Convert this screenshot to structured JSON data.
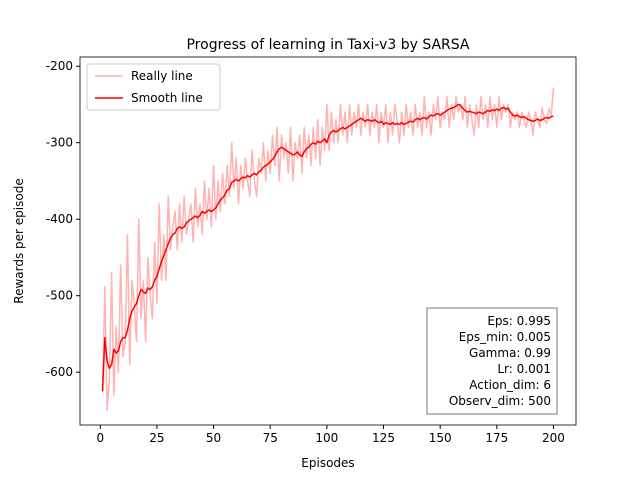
{
  "chart_data": {
    "type": "line",
    "title": "Progress of learning in Taxi-v3 by SARSA",
    "xlabel": "Episodes",
    "ylabel": "Rewards per episode",
    "xlim": [
      -8.95,
      209.95
    ],
    "ylim": [
      -669,
      -188
    ],
    "xticks": [
      0,
      25,
      50,
      75,
      100,
      125,
      150,
      175,
      200
    ],
    "yticks": [
      -600,
      -500,
      -400,
      -300,
      -200
    ],
    "legend": "upper left",
    "annotation": [
      "Eps: 0.995",
      "Eps_min: 0.005",
      "Gamma: 0.99",
      "Lr: 0.001",
      "Action_dim: 6",
      "Observ_dim: 500"
    ],
    "x": [
      1,
      2,
      3,
      4,
      5,
      6,
      7,
      8,
      9,
      10,
      11,
      12,
      13,
      14,
      15,
      16,
      17,
      18,
      19,
      20,
      21,
      22,
      23,
      24,
      25,
      26,
      27,
      28,
      29,
      30,
      31,
      32,
      33,
      34,
      35,
      36,
      37,
      38,
      39,
      40,
      41,
      42,
      43,
      44,
      45,
      46,
      47,
      48,
      49,
      50,
      51,
      52,
      53,
      54,
      55,
      56,
      57,
      58,
      59,
      60,
      61,
      62,
      63,
      64,
      65,
      66,
      67,
      68,
      69,
      70,
      71,
      72,
      73,
      74,
      75,
      76,
      77,
      78,
      79,
      80,
      81,
      82,
      83,
      84,
      85,
      86,
      87,
      88,
      89,
      90,
      91,
      92,
      93,
      94,
      95,
      96,
      97,
      98,
      99,
      100,
      101,
      102,
      103,
      104,
      105,
      106,
      107,
      108,
      109,
      110,
      111,
      112,
      113,
      114,
      115,
      116,
      117,
      118,
      119,
      120,
      121,
      122,
      123,
      124,
      125,
      126,
      127,
      128,
      129,
      130,
      131,
      132,
      133,
      134,
      135,
      136,
      137,
      138,
      139,
      140,
      141,
      142,
      143,
      144,
      145,
      146,
      147,
      148,
      149,
      150,
      151,
      152,
      153,
      154,
      155,
      156,
      157,
      158,
      159,
      160,
      161,
      162,
      163,
      164,
      165,
      166,
      167,
      168,
      169,
      170,
      171,
      172,
      173,
      174,
      175,
      176,
      177,
      178,
      179,
      180,
      181,
      182,
      183,
      184,
      185,
      186,
      187,
      188,
      189,
      190,
      191,
      192,
      193,
      194,
      195,
      196,
      197,
      198,
      199,
      200
    ],
    "series": [
      {
        "name": "Really line",
        "color": "#ffb3b3",
        "values": [
          -625,
          -488,
          -650,
          -610,
          -470,
          -630,
          -540,
          -600,
          -460,
          -580,
          -560,
          -420,
          -590,
          -480,
          -510,
          -560,
          -400,
          -530,
          -480,
          -560,
          -450,
          -500,
          -530,
          -430,
          -510,
          -380,
          -480,
          -420,
          -480,
          -370,
          -440,
          -410,
          -390,
          -440,
          -380,
          -430,
          -370,
          -420,
          -400,
          -380,
          -430,
          -360,
          -410,
          -380,
          -420,
          -350,
          -400,
          -360,
          -410,
          -330,
          -400,
          -350,
          -390,
          -340,
          -380,
          -330,
          -370,
          -300,
          -360,
          -320,
          -380,
          -330,
          -360,
          -320,
          -350,
          -370,
          -310,
          -350,
          -370,
          -320,
          -340,
          -300,
          -350,
          -310,
          -340,
          -290,
          -330,
          -280,
          -350,
          -290,
          -320,
          -300,
          -340,
          -280,
          -350,
          -300,
          -320,
          -290,
          -340,
          -280,
          -320,
          -290,
          -330,
          -280,
          -320,
          -270,
          -330,
          -280,
          -310,
          -250,
          -310,
          -260,
          -300,
          -270,
          -300,
          -250,
          -290,
          -260,
          -300,
          -250,
          -290,
          -260,
          -280,
          -250,
          -290,
          -260,
          -280,
          -250,
          -290,
          -260,
          -280,
          -250,
          -300,
          -260,
          -280,
          -250,
          -300,
          -260,
          -290,
          -250,
          -270,
          -300,
          -260,
          -290,
          -250,
          -280,
          -260,
          -290,
          -250,
          -280,
          -260,
          -290,
          -240,
          -280,
          -260,
          -290,
          -250,
          -270,
          -240,
          -280,
          -260,
          -270,
          -240,
          -280,
          -250,
          -270,
          -240,
          -260,
          -250,
          -270,
          -240,
          -280,
          -250,
          -270,
          -290,
          -250,
          -280,
          -240,
          -270,
          -250,
          -280,
          -240,
          -270,
          -250,
          -280,
          -240,
          -270,
          -250,
          -260,
          -250,
          -280,
          -260,
          -270,
          -260,
          -280,
          -260,
          -270,
          -280,
          -260,
          -270,
          -290,
          -260,
          -270,
          -280,
          -255,
          -270,
          -275,
          -255,
          -265,
          -228
        ]
      },
      {
        "name": "Smooth line",
        "color": "#ff0000",
        "values": [
          -625,
          -555,
          -585,
          -595,
          -590,
          -570,
          -575,
          -572,
          -560,
          -555,
          -555,
          -545,
          -530,
          -520,
          -515,
          -510,
          -500,
          -492,
          -495,
          -497,
          -490,
          -492,
          -488,
          -480,
          -475,
          -465,
          -455,
          -448,
          -440,
          -432,
          -425,
          -420,
          -418,
          -412,
          -410,
          -412,
          -410,
          -405,
          -402,
          -400,
          -398,
          -396,
          -398,
          -395,
          -390,
          -392,
          -390,
          -388,
          -390,
          -388,
          -385,
          -380,
          -375,
          -372,
          -368,
          -362,
          -360,
          -352,
          -350,
          -348,
          -350,
          -347,
          -345,
          -346,
          -343,
          -345,
          -342,
          -340,
          -342,
          -338,
          -336,
          -332,
          -330,
          -328,
          -325,
          -322,
          -318,
          -312,
          -308,
          -306,
          -308,
          -310,
          -312,
          -314,
          -316,
          -315,
          -312,
          -316,
          -318,
          -312,
          -308,
          -306,
          -302,
          -300,
          -302,
          -298,
          -300,
          -298,
          -295,
          -300,
          -290,
          -286,
          -284,
          -286,
          -284,
          -282,
          -280,
          -282,
          -280,
          -278,
          -276,
          -274,
          -272,
          -270,
          -268,
          -270,
          -272,
          -270,
          -271,
          -272,
          -270,
          -272,
          -274,
          -272,
          -276,
          -274,
          -275,
          -276,
          -274,
          -276,
          -275,
          -276,
          -274,
          -276,
          -275,
          -273,
          -272,
          -273,
          -270,
          -268,
          -270,
          -268,
          -267,
          -269,
          -266,
          -264,
          -265,
          -263,
          -262,
          -264,
          -262,
          -260,
          -258,
          -256,
          -255,
          -254,
          -252,
          -250,
          -251,
          -255,
          -258,
          -260,
          -259,
          -260,
          -261,
          -262,
          -260,
          -261,
          -262,
          -260,
          -258,
          -259,
          -257,
          -258,
          -256,
          -258,
          -255,
          -254,
          -256,
          -255,
          -260,
          -264,
          -265,
          -264,
          -266,
          -267,
          -266,
          -268,
          -270,
          -271,
          -272,
          -271,
          -269,
          -271,
          -270,
          -268,
          -267,
          -268,
          -266,
          -265
        ]
      }
    ]
  }
}
